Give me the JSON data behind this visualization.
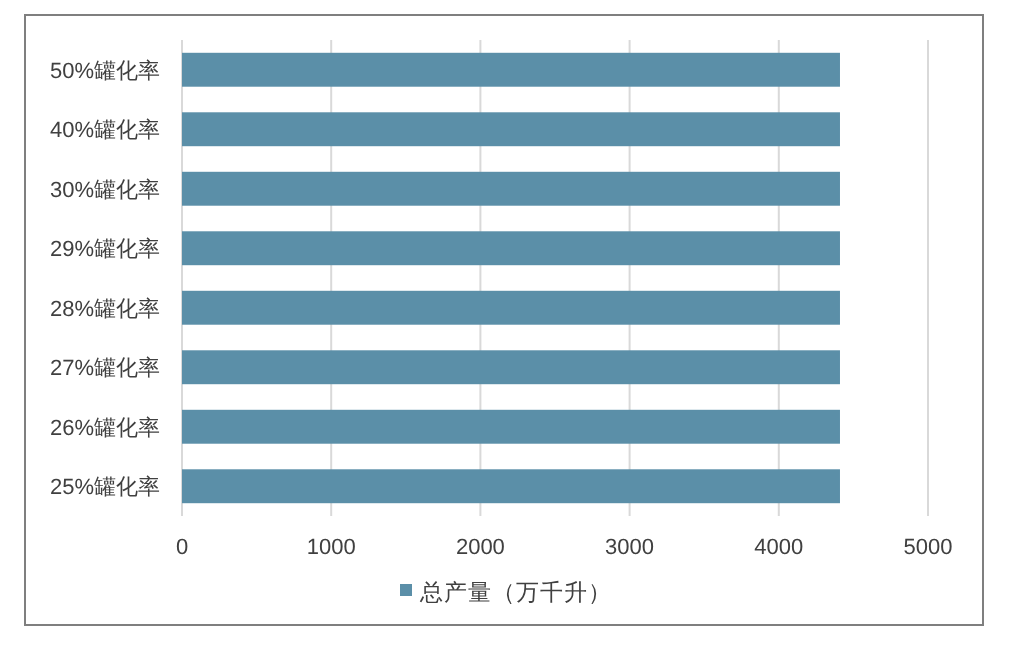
{
  "chart_data": {
    "type": "bar",
    "orientation": "horizontal",
    "categories": [
      "50%罐化率",
      "40%罐化率",
      "30%罐化率",
      "29%罐化率",
      "28%罐化率",
      "27%罐化率",
      "26%罐化率",
      "25%罐化率"
    ],
    "series": [
      {
        "name": "总产量（万千升）",
        "color": "#5b8fa8",
        "values": [
          4410,
          4410,
          4410,
          4410,
          4410,
          4410,
          4410,
          4410
        ]
      }
    ],
    "xlim": [
      0,
      5000
    ],
    "xticks": [
      0,
      1000,
      2000,
      3000,
      4000,
      5000
    ],
    "grid": "x",
    "legend": "bottom"
  }
}
